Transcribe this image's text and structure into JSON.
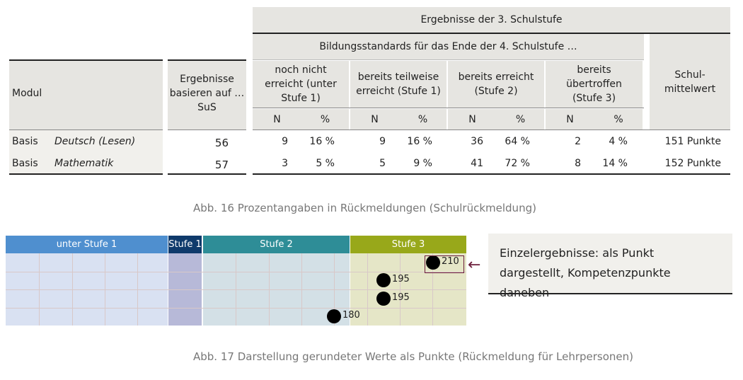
{
  "table": {
    "top_header": "Ergebnisse der 3. Schulstufe",
    "sub_header": "Bildungsstandards für das Ende der 4. Schulstufe …",
    "modul_header": "Modul",
    "sus_header": "Ergebnisse basieren auf … SuS",
    "mean_header": "Schul-mittelwert",
    "levels": [
      "noch nicht erreicht (unter Stufe 1)",
      "bereits teilweise erreicht (Stufe 1)",
      "bereits erreicht (Stufe 2)",
      "bereits übertroffen (Stufe 3)"
    ],
    "n_label": "N",
    "pct_label": "%",
    "rows": [
      {
        "modul": "Basis",
        "fach": "Deutsch (Lesen)",
        "sus": "56",
        "n": [
          "9",
          "9",
          "36",
          "2"
        ],
        "pct": [
          "16 %",
          "16 %",
          "64 %",
          "4 %"
        ],
        "mean": "151 Punkte"
      },
      {
        "modul": "Basis",
        "fach": "Mathematik",
        "sus": "57",
        "n": [
          "3",
          "5",
          "41",
          "8"
        ],
        "pct": [
          "5 %",
          "9 %",
          "72 %",
          "14 %"
        ],
        "mean": "152 Punkte"
      }
    ]
  },
  "caption1": "Abb. 16  Prozentangaben in Rückmeldungen (Schulrückmeldung)",
  "chart": {
    "bands": [
      {
        "label": "unter Stufe 1",
        "color": "#4f8fcf"
      },
      {
        "label": "Stufe 1",
        "color": "#0f3a6b"
      },
      {
        "label": "Stufe 2",
        "color": "#2e8d97"
      },
      {
        "label": "Stufe 3",
        "color": "#98a81a"
      }
    ],
    "points": [
      210,
      195,
      195,
      180
    ],
    "highlight_color": "#6b1d3a"
  },
  "callout": "Einzelergebnisse: als Punkt dargestellt, Kompetenzpunkte daneben",
  "caption2": "Abb. 17  Darstellung gerundeter Werte als Punkte (Rückmeldung für Lehrpersonen)"
}
